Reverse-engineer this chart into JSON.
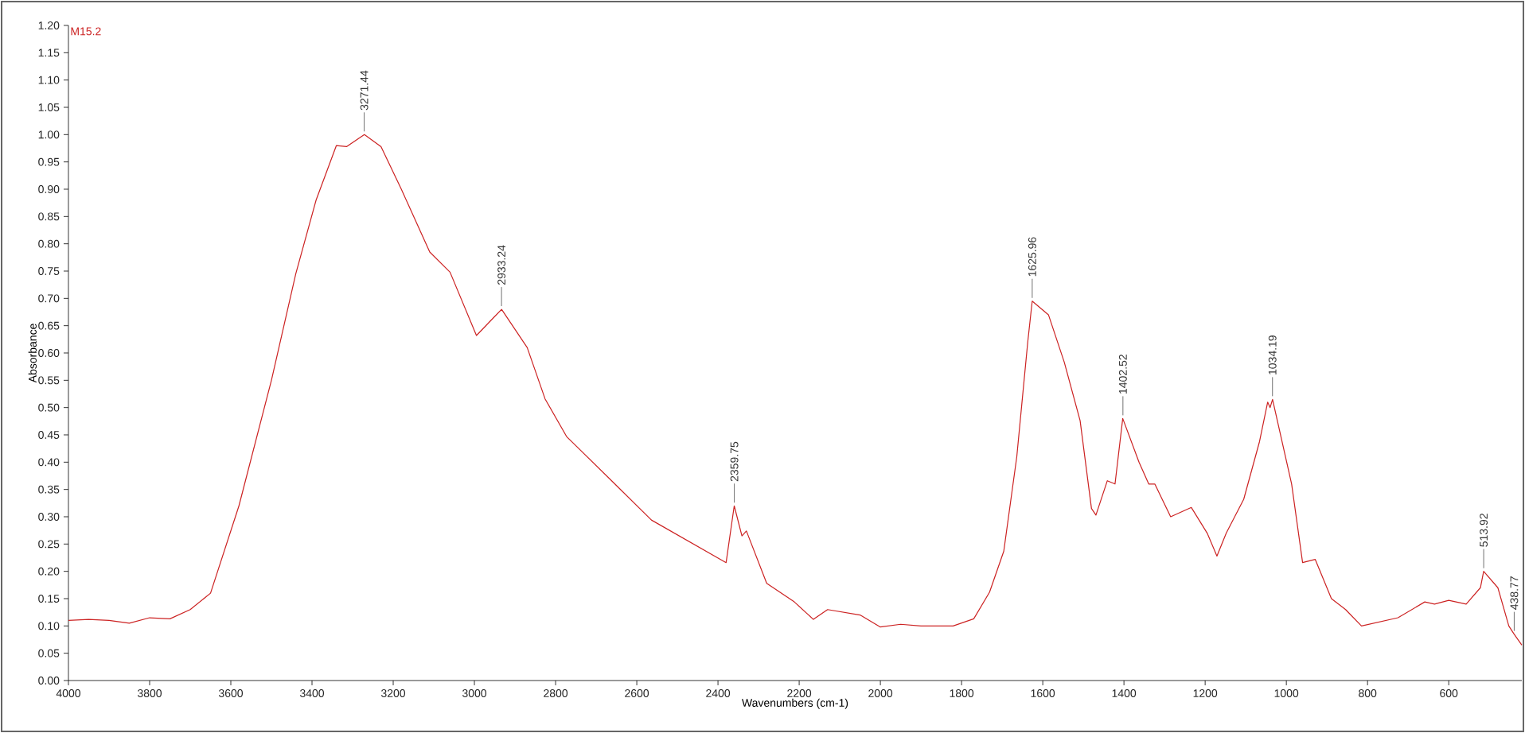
{
  "chart_data": {
    "type": "line",
    "title": "M15.2",
    "xlabel": "Wavenumbers (cm-1)",
    "ylabel": "Absorbance",
    "xlim": [
      4000,
      420
    ],
    "ylim": [
      0,
      1.2
    ],
    "xticks": [
      4000,
      3800,
      3600,
      3400,
      3200,
      3000,
      2800,
      2600,
      2400,
      2200,
      2000,
      1800,
      1600,
      1400,
      1200,
      1000,
      800,
      600
    ],
    "yticks": [
      {
        "value": 0,
        "label": "0.00"
      },
      {
        "value": 0.05,
        "label": "0.05"
      },
      {
        "value": 0.1,
        "label": "0.10"
      },
      {
        "value": 0.15,
        "label": "0.15"
      },
      {
        "value": 0.2,
        "label": "0.20"
      },
      {
        "value": 0.25,
        "label": "0.25"
      },
      {
        "value": 0.3,
        "label": "0.30"
      },
      {
        "value": 0.35,
        "label": "0.35"
      },
      {
        "value": 0.4,
        "label": "0.40"
      },
      {
        "value": 0.45,
        "label": "0.45"
      },
      {
        "value": 0.5,
        "label": "0.50"
      },
      {
        "value": 0.55,
        "label": "0.55"
      },
      {
        "value": 0.6,
        "label": "0.60"
      },
      {
        "value": 0.65,
        "label": "0.65"
      },
      {
        "value": 0.7,
        "label": "0.70"
      },
      {
        "value": 0.75,
        "label": "0.75"
      },
      {
        "value": 0.8,
        "label": "0.80"
      },
      {
        "value": 0.85,
        "label": "0.85"
      },
      {
        "value": 0.9,
        "label": "0.90"
      },
      {
        "value": 0.95,
        "label": "0.95"
      },
      {
        "value": 1.0,
        "label": "1.00"
      },
      {
        "value": 1.05,
        "label": "1.05"
      },
      {
        "value": 1.1,
        "label": "1.10"
      },
      {
        "value": 1.15,
        "label": "1.15"
      },
      {
        "value": 1.2,
        "label": "1.20"
      }
    ],
    "grid": false,
    "x": [
      4000,
      3950,
      3900,
      3850,
      3800,
      3750,
      3700,
      3650,
      3580,
      3500,
      3440,
      3390,
      3340,
      3315,
      3271,
      3230,
      3180,
      3110,
      3060,
      2995,
      2955,
      2933,
      2870,
      2826,
      2773,
      2654,
      2564,
      2380,
      2360,
      2341,
      2330,
      2280,
      2212,
      2165,
      2130,
      2050,
      2000,
      1950,
      1900,
      1821,
      1770,
      1731,
      1696,
      1664,
      1637,
      1626,
      1586,
      1547,
      1508,
      1480,
      1469,
      1441,
      1422,
      1403,
      1363,
      1339,
      1324,
      1285,
      1234,
      1195,
      1171,
      1148,
      1105,
      1066,
      1046,
      1040,
      1034,
      987,
      960,
      929,
      889,
      854,
      815,
      725,
      659,
      635,
      600,
      557,
      522,
      514,
      479,
      452,
      439,
      420
    ],
    "series": [
      {
        "color": "#cc2222",
        "values": [
          0.11,
          0.112,
          0.11,
          0.105,
          0.115,
          0.113,
          0.13,
          0.16,
          0.32,
          0.55,
          0.745,
          0.88,
          0.98,
          0.978,
          1.0,
          0.978,
          0.9,
          0.785,
          0.748,
          0.632,
          0.663,
          0.68,
          0.61,
          0.516,
          0.447,
          0.36,
          0.294,
          0.216,
          0.32,
          0.265,
          0.274,
          0.178,
          0.144,
          0.112,
          0.13,
          0.12,
          0.098,
          0.103,
          0.1,
          0.1,
          0.113,
          0.162,
          0.237,
          0.41,
          0.62,
          0.695,
          0.67,
          0.583,
          0.476,
          0.315,
          0.303,
          0.366,
          0.36,
          0.48,
          0.4,
          0.36,
          0.36,
          0.3,
          0.317,
          0.27,
          0.228,
          0.27,
          0.332,
          0.438,
          0.51,
          0.5,
          0.515,
          0.36,
          0.216,
          0.222,
          0.15,
          0.13,
          0.1,
          0.115,
          0.144,
          0.14,
          0.147,
          0.14,
          0.17,
          0.2,
          0.17,
          0.1,
          0.085,
          0.065
        ]
      }
    ],
    "annotations": [
      {
        "text": "3271.44",
        "x": 3271.44,
        "y": 1.0
      },
      {
        "text": "2933.24",
        "x": 2933.24,
        "y": 0.68
      },
      {
        "text": "2359.75",
        "x": 2359.75,
        "y": 0.32
      },
      {
        "text": "1625.96",
        "x": 1625.96,
        "y": 0.695
      },
      {
        "text": "1402.52",
        "x": 1402.52,
        "y": 0.48
      },
      {
        "text": "1034.19",
        "x": 1034.19,
        "y": 0.515
      },
      {
        "text": "513.92",
        "x": 513.92,
        "y": 0.2
      },
      {
        "text": "438.77",
        "x": 438.77,
        "y": 0.085
      }
    ]
  }
}
